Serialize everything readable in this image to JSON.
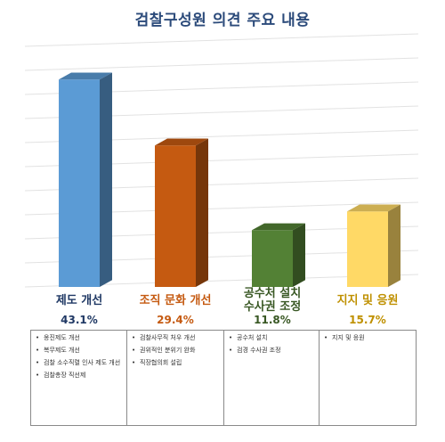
{
  "title": "검찰구성원 의견 주요 내용",
  "chart_data": {
    "type": "bar",
    "title": "검찰구성원 의견 주요 내용",
    "categories": [
      "제도 개선",
      "조직 문화 개선",
      "공수처 설치\n수사권 조정",
      "지지 및 응원"
    ],
    "values": [
      43.1,
      29.4,
      11.8,
      15.7
    ],
    "value_labels": [
      "43.1%",
      "29.4%",
      "11.8%",
      "15.7%"
    ],
    "ylim": [
      0,
      50
    ],
    "grid": true,
    "colors": [
      "#5b9bd5",
      "#c55a11",
      "#538135",
      "#ffd966"
    ],
    "label_colors": [
      "#1f3864",
      "#c55a11",
      "#385723",
      "#bf9000"
    ],
    "notes": [
      [
        "옹진제도 개선",
        "복무제도 개선",
        "검찰 소수직렬 인사 제도 개선",
        "검찰총장 직선제"
      ],
      [
        "검찰사무직 처우 개선",
        "권위적인 분위기 완화",
        "직장협의회 설립"
      ],
      [
        "공수처 설치",
        "검경 수사권 조정"
      ],
      [
        "지지 및 응원"
      ]
    ]
  }
}
